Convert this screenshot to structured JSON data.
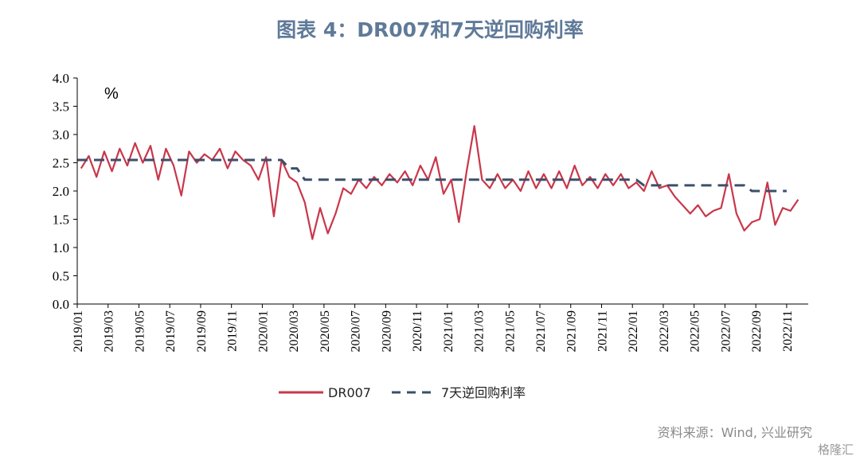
{
  "title": "图表 4：DR007和7天逆回购利率",
  "source": "资料来源：Wind, 兴业研究",
  "watermark": "格隆汇",
  "chart_data": {
    "type": "line",
    "ylabel": "%",
    "ylim": [
      0,
      4
    ],
    "yticks": [
      "0.0",
      "0.5",
      "1.0",
      "1.5",
      "2.0",
      "2.5",
      "3.0",
      "3.5",
      "4.0"
    ],
    "x_categories": [
      "2019/01",
      "2019/03",
      "2019/05",
      "2019/07",
      "2019/09",
      "2019/11",
      "2020/01",
      "2020/03",
      "2020/05",
      "2020/07",
      "2020/09",
      "2020/11",
      "2021/01",
      "2021/03",
      "2021/05",
      "2021/07",
      "2021/09",
      "2021/11",
      "2022/01",
      "2022/03",
      "2022/05",
      "2022/07",
      "2022/09",
      "2022/11"
    ],
    "legend_position": "bottom",
    "colors": {
      "DR007": "#c8374a",
      "7天逆回购利率": "#3b4f6b"
    },
    "series": [
      {
        "name": "DR007",
        "style": "solid",
        "points": [
          [
            "2019/01",
            2.4
          ],
          [
            "2019/01",
            2.62
          ],
          [
            "2019/02",
            2.25
          ],
          [
            "2019/02",
            2.7
          ],
          [
            "2019/03",
            2.35
          ],
          [
            "2019/03",
            2.75
          ],
          [
            "2019/04",
            2.45
          ],
          [
            "2019/04",
            2.85
          ],
          [
            "2019/05",
            2.5
          ],
          [
            "2019/05",
            2.8
          ],
          [
            "2019/06",
            2.2
          ],
          [
            "2019/06",
            2.75
          ],
          [
            "2019/07",
            2.45
          ],
          [
            "2019/07",
            1.92
          ],
          [
            "2019/08",
            2.7
          ],
          [
            "2019/08",
            2.5
          ],
          [
            "2019/09",
            2.65
          ],
          [
            "2019/09",
            2.55
          ],
          [
            "2019/10",
            2.75
          ],
          [
            "2019/10",
            2.4
          ],
          [
            "2019/11",
            2.7
          ],
          [
            "2019/11",
            2.55
          ],
          [
            "2019/12",
            2.45
          ],
          [
            "2019/12",
            2.2
          ],
          [
            "2020/01",
            2.6
          ],
          [
            "2020/01",
            1.55
          ],
          [
            "2020/02",
            2.55
          ],
          [
            "2020/02",
            2.25
          ],
          [
            "2020/03",
            2.15
          ],
          [
            "2020/03",
            1.8
          ],
          [
            "2020/04",
            1.15
          ],
          [
            "2020/04",
            1.7
          ],
          [
            "2020/05",
            1.25
          ],
          [
            "2020/05",
            1.6
          ],
          [
            "2020/06",
            2.05
          ],
          [
            "2020/06",
            1.95
          ],
          [
            "2020/07",
            2.2
          ],
          [
            "2020/07",
            2.05
          ],
          [
            "2020/08",
            2.25
          ],
          [
            "2020/08",
            2.1
          ],
          [
            "2020/09",
            2.3
          ],
          [
            "2020/09",
            2.15
          ],
          [
            "2020/10",
            2.35
          ],
          [
            "2020/10",
            2.1
          ],
          [
            "2020/11",
            2.45
          ],
          [
            "2020/11",
            2.2
          ],
          [
            "2020/12",
            2.6
          ],
          [
            "2020/12",
            1.95
          ],
          [
            "2021/01",
            2.2
          ],
          [
            "2021/01",
            1.45
          ],
          [
            "2021/02",
            2.35
          ],
          [
            "2021/02",
            3.15
          ],
          [
            "2021/03",
            2.2
          ],
          [
            "2021/03",
            2.05
          ],
          [
            "2021/04",
            2.3
          ],
          [
            "2021/04",
            2.05
          ],
          [
            "2021/05",
            2.2
          ],
          [
            "2021/05",
            2.0
          ],
          [
            "2021/06",
            2.35
          ],
          [
            "2021/06",
            2.05
          ],
          [
            "2021/07",
            2.3
          ],
          [
            "2021/07",
            2.05
          ],
          [
            "2021/08",
            2.35
          ],
          [
            "2021/08",
            2.05
          ],
          [
            "2021/09",
            2.45
          ],
          [
            "2021/09",
            2.1
          ],
          [
            "2021/10",
            2.25
          ],
          [
            "2021/10",
            2.05
          ],
          [
            "2021/11",
            2.3
          ],
          [
            "2021/11",
            2.1
          ],
          [
            "2021/12",
            2.3
          ],
          [
            "2021/12",
            2.05
          ],
          [
            "2022/01",
            2.15
          ],
          [
            "2022/01",
            2.0
          ],
          [
            "2022/02",
            2.35
          ],
          [
            "2022/02",
            2.05
          ],
          [
            "2022/03",
            2.1
          ],
          [
            "2022/03",
            1.9
          ],
          [
            "2022/04",
            1.75
          ],
          [
            "2022/04",
            1.6
          ],
          [
            "2022/05",
            1.75
          ],
          [
            "2022/05",
            1.55
          ],
          [
            "2022/06",
            1.65
          ],
          [
            "2022/06",
            1.7
          ],
          [
            "2022/07",
            2.3
          ],
          [
            "2022/07",
            1.6
          ],
          [
            "2022/08",
            1.3
          ],
          [
            "2022/08",
            1.45
          ],
          [
            "2022/09",
            1.5
          ],
          [
            "2022/09",
            2.15
          ],
          [
            "2022/10",
            1.4
          ],
          [
            "2022/10",
            1.7
          ],
          [
            "2022/11",
            1.65
          ],
          [
            "2022/11",
            1.85
          ]
        ]
      },
      {
        "name": "7天逆回购利率",
        "style": "dashed",
        "points": [
          [
            "2019/01",
            2.55
          ],
          [
            "2020/02",
            2.55
          ],
          [
            "2020/02",
            2.4
          ],
          [
            "2020/03",
            2.4
          ],
          [
            "2020/03",
            2.2
          ],
          [
            "2022/01",
            2.2
          ],
          [
            "2022/01",
            2.1
          ],
          [
            "2022/08",
            2.1
          ],
          [
            "2022/08",
            2.0
          ],
          [
            "2022/11",
            2.0
          ]
        ]
      }
    ]
  }
}
